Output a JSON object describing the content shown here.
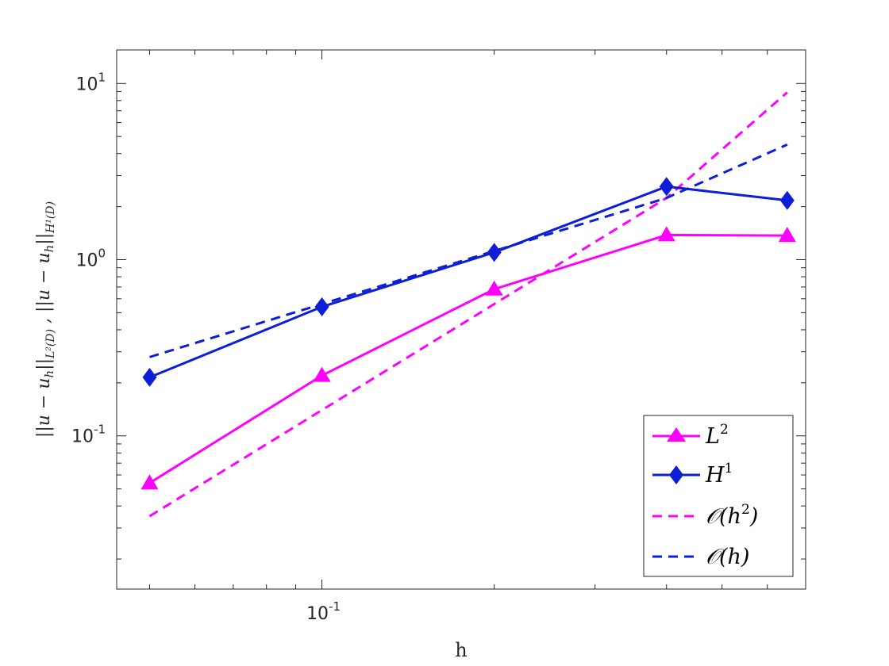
{
  "chart_data": {
    "type": "line",
    "x_scale": "log",
    "y_scale": "log",
    "xlabel": "h",
    "ylabel_parts": [
      "||u − u",
      "h",
      "||",
      "L²(D)",
      " , ||u − u",
      "h",
      "||",
      "H¹(D)"
    ],
    "xlim": [
      0.0438,
      0.7
    ],
    "ylim": [
      0.0135,
      15.5
    ],
    "x_ticks": [
      {
        "base": "10",
        "exp": "-1",
        "value": 0.1
      }
    ],
    "y_ticks": [
      {
        "base": "10",
        "exp": "-1",
        "value": 0.1
      },
      {
        "base": "10",
        "exp": "0",
        "value": 1
      },
      {
        "base": "10",
        "exp": "1",
        "value": 10
      }
    ],
    "x": [
      0.05,
      0.1,
      0.2,
      0.4,
      0.65
    ],
    "series": [
      {
        "name": "L2",
        "label_base": "L",
        "label_sup": "2",
        "color": "#ff00ff",
        "style": "solid",
        "marker": "triangle",
        "values": [
          0.054,
          0.22,
          0.68,
          1.38,
          1.37
        ]
      },
      {
        "name": "H1",
        "label_base": "H",
        "label_sup": "1",
        "color": "#0d1ed6",
        "style": "solid",
        "marker": "diamond",
        "values": [
          0.215,
          0.54,
          1.1,
          2.6,
          2.17
        ]
      },
      {
        "name": "O(h^2)",
        "label_base": "𝒪(h",
        "label_sup": "2",
        "label_tail": ")",
        "color": "#ff00ff",
        "style": "dashed",
        "marker": "none",
        "values": [
          0.035,
          0.14,
          0.56,
          2.24,
          8.9
        ]
      },
      {
        "name": "O(h)",
        "label_base": "𝒪(h)",
        "label_sup": "",
        "label_tail": "",
        "color": "#0d1ed6",
        "style": "dashed",
        "marker": "none",
        "values": [
          0.28,
          0.56,
          1.12,
          2.24,
          4.5
        ]
      }
    ],
    "legend_location": "bottom-right",
    "grid": false
  }
}
